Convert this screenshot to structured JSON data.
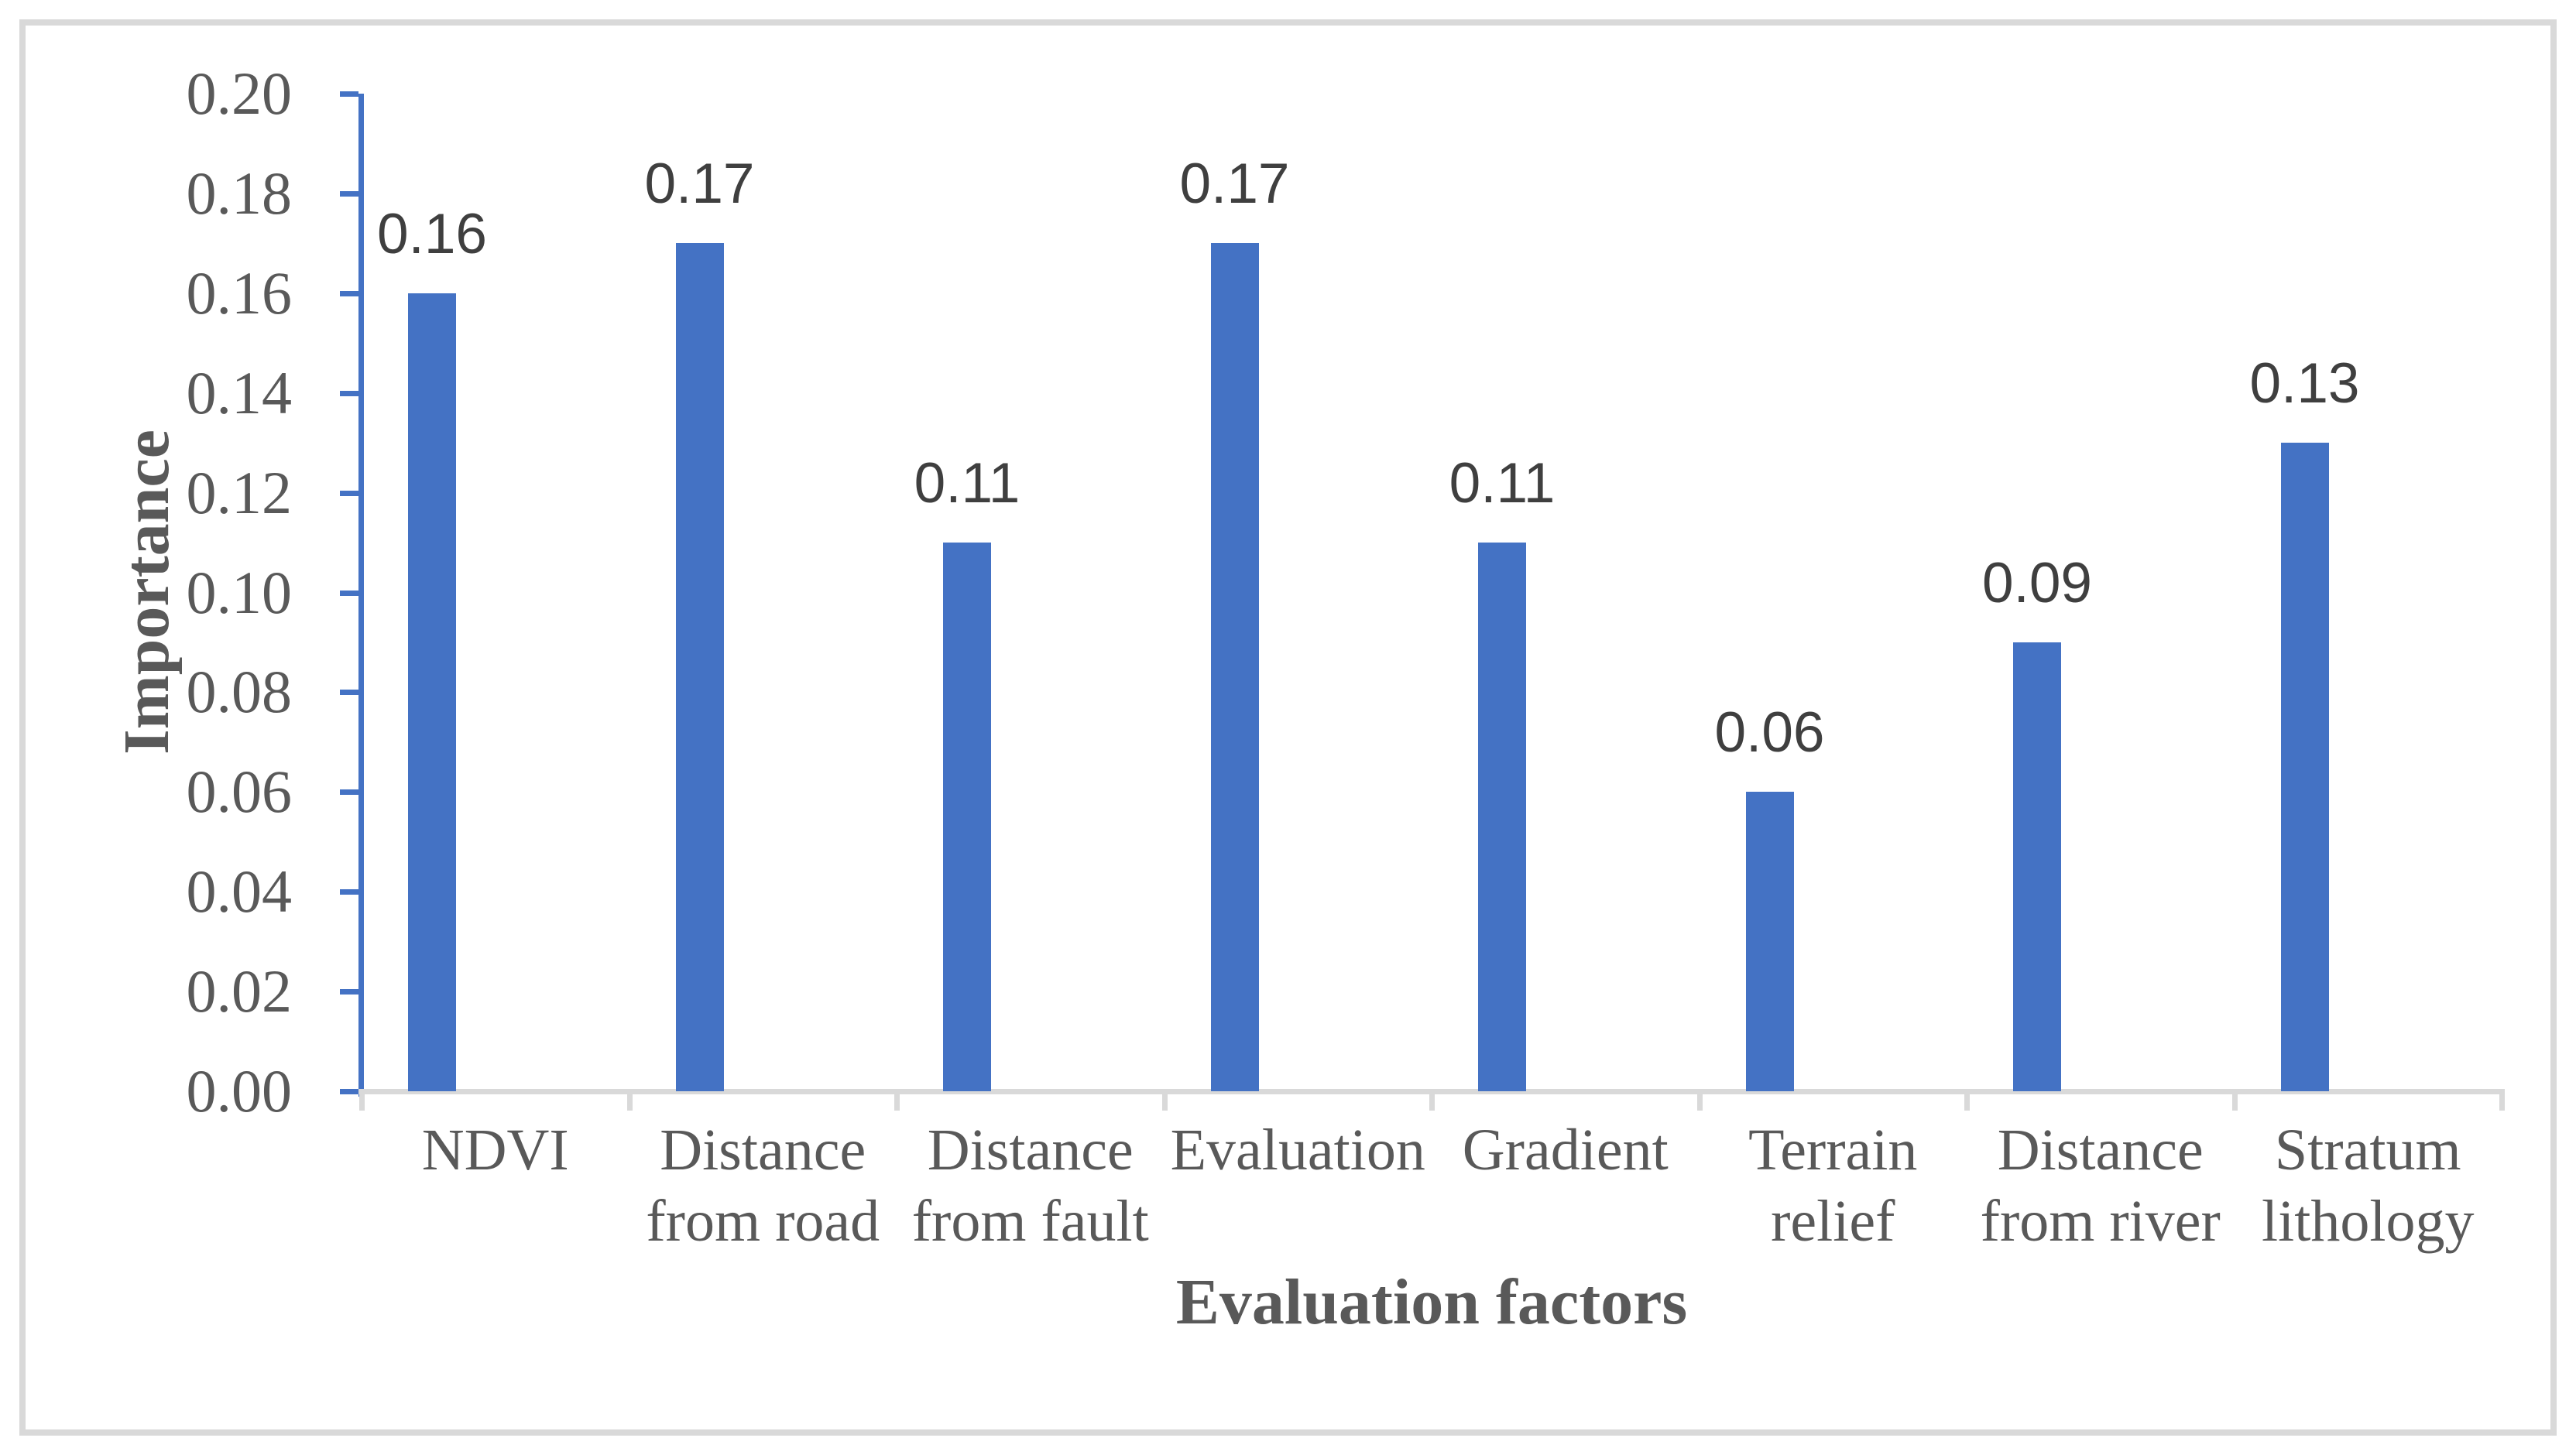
{
  "chart_data": {
    "type": "bar",
    "title": "",
    "xlabel": "Evaluation factors",
    "ylabel": "Importance",
    "categories": [
      "NDVI",
      "Distance from road",
      "Distance from fault",
      "Evaluation",
      "Gradient",
      "Terrain relief",
      "Distance from river",
      "Stratum lithology"
    ],
    "values": [
      0.16,
      0.17,
      0.11,
      0.17,
      0.11,
      0.06,
      0.09,
      0.13
    ],
    "data_labels": [
      "0.16",
      "0.17",
      "0.11",
      "0.17",
      "0.11",
      "0.06",
      "0.09",
      "0.13"
    ],
    "ylim": [
      0.0,
      0.2
    ],
    "y_ticks_top_down": [
      "0.20",
      "0.18",
      "0.16",
      "0.14",
      "0.12",
      "0.10",
      "0.08",
      "0.06",
      "0.04",
      "0.02",
      "0.00"
    ],
    "grid": "off",
    "legend": "none",
    "colors": {
      "bar": "#4472C4",
      "y_axis_line": "#4472C4",
      "x_axis_line": "#D9D9D9",
      "tick_text": "#595959",
      "data_label_text": "#3F3F3F",
      "axis_title_text": "#595959",
      "frame_border": "#D9D9D9"
    }
  }
}
